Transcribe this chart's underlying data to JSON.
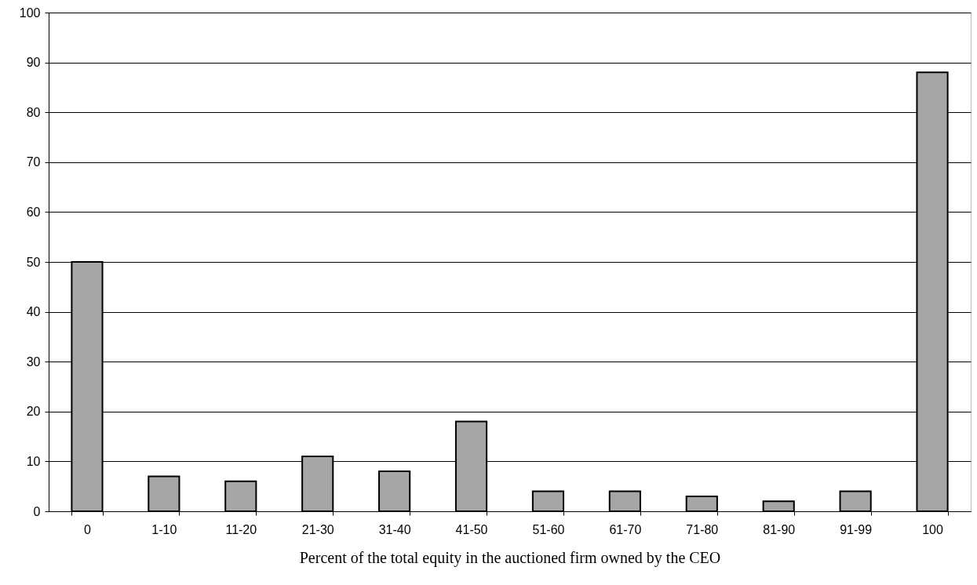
{
  "chart_data": {
    "type": "bar",
    "xlabel": "Percent of the total equity in the auctioned firm owned by the CEO",
    "categories": [
      "0",
      "1-10",
      "11-20",
      "21-30",
      "31-40",
      "41-50",
      "51-60",
      "61-70",
      "71-80",
      "81-90",
      "91-99",
      "100"
    ],
    "values": [
      50,
      7,
      6,
      11,
      8,
      18,
      4,
      4,
      3,
      2,
      4,
      88
    ],
    "color": "#a6a6a6",
    "ylim": [
      0,
      100
    ],
    "yticks": [
      0,
      10,
      20,
      30,
      40,
      50,
      60,
      70,
      80,
      90,
      100
    ],
    "grid": "y"
  }
}
